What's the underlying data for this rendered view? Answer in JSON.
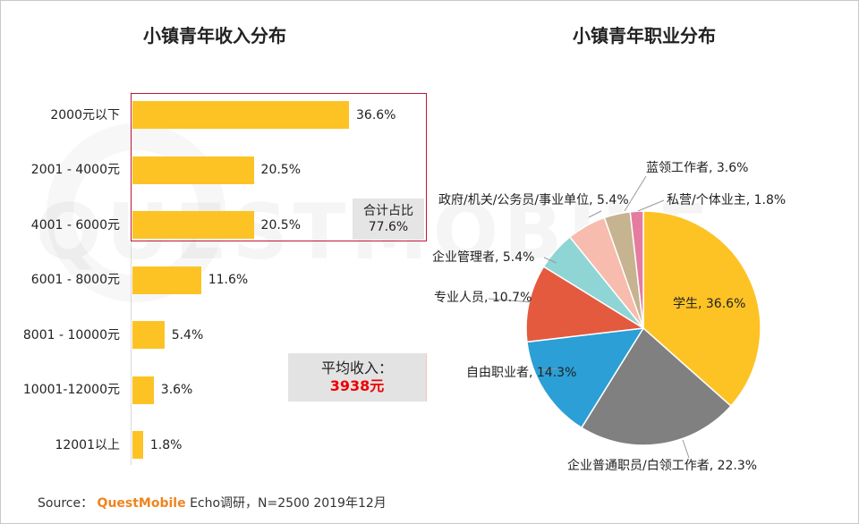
{
  "chart_data": [
    {
      "type": "bar",
      "orientation": "horizontal",
      "title": "小镇青年收入分布",
      "categories": [
        "2000元以下",
        "2001 - 4000元",
        "4001 - 6000元",
        "6001 - 8000元",
        "8001 - 10000元",
        "10001-12000元",
        "12001以上"
      ],
      "values": [
        36.6,
        20.5,
        20.5,
        11.6,
        5.4,
        3.6,
        1.8
      ],
      "value_labels": [
        "36.6%",
        "20.5%",
        "20.5%",
        "11.6%",
        "5.4%",
        "3.6%",
        "1.8%"
      ],
      "unit": "%",
      "bar_color": "#fdc325",
      "highlight_color": "#c0143c",
      "annotations": {
        "sum_label": "合计占比",
        "sum_value": "77.6%",
        "avg_label": "平均收入：",
        "avg_value": "3938元",
        "avg_value_color": "#ee0000"
      }
    },
    {
      "type": "pie",
      "title": "小镇青年职业分布",
      "slices": [
        {
          "label": "学生, 36.6%",
          "value": 36.6,
          "color": "#fdc325"
        },
        {
          "label": "企业普通职员/白领工作者, 22.3%",
          "value": 22.3,
          "color": "#808080"
        },
        {
          "label": "自由职业者, 14.3%",
          "value": 14.3,
          "color": "#2b9fd6"
        },
        {
          "label": "专业人员, 10.7%",
          "value": 10.7,
          "color": "#e45a3f"
        },
        {
          "label": "企业管理者, 5.4%",
          "value": 5.4,
          "color": "#8fd5d5"
        },
        {
          "label": "政府/机关/公务员/事业单位, 5.4%",
          "value": 5.4,
          "color": "#f7bcae"
        },
        {
          "label": "蓝领工作者, 3.6%",
          "value": 3.6,
          "color": "#c6b38f"
        },
        {
          "label": "私营/个体业主, 1.8%",
          "value": 1.8,
          "color": "#e57ca0"
        }
      ]
    }
  ],
  "source": {
    "prefix": "Source：",
    "brand": "QuestMobile",
    "text": "Echo调研，N=2500 2019年12月"
  },
  "watermark": "QUESTMOBILE"
}
